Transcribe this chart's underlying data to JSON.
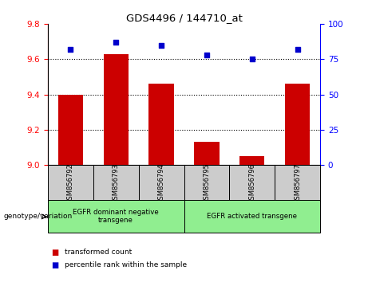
{
  "title": "GDS4496 / 144710_at",
  "samples": [
    "GSM856792",
    "GSM856793",
    "GSM856794",
    "GSM856795",
    "GSM856796",
    "GSM856797"
  ],
  "bar_values": [
    9.4,
    9.63,
    9.46,
    9.13,
    9.05,
    9.46
  ],
  "percentile_values": [
    82,
    87,
    85,
    78,
    75,
    82
  ],
  "ylim_left": [
    9.0,
    9.8
  ],
  "ylim_right": [
    0,
    100
  ],
  "yticks_left": [
    9.0,
    9.2,
    9.4,
    9.6,
    9.8
  ],
  "yticks_right": [
    0,
    25,
    50,
    75,
    100
  ],
  "bar_color": "#cc0000",
  "dot_color": "#0000cc",
  "group1_label": "EGFR dominant negative\ntransgene",
  "group2_label": "EGFR activated transgene",
  "group1_color": "#90ee90",
  "group2_color": "#90ee90",
  "group1_indices": [
    0,
    1,
    2
  ],
  "group2_indices": [
    3,
    4,
    5
  ],
  "legend_red_label": "transformed count",
  "legend_blue_label": "percentile rank within the sample",
  "genotype_label": "genotype/variation",
  "xticklabel_bg": "#cccccc",
  "gridlines_at": [
    9.2,
    9.4,
    9.6
  ]
}
